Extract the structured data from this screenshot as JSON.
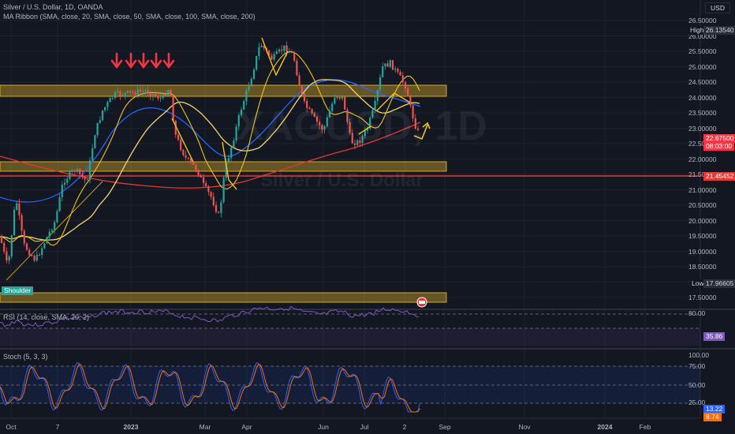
{
  "header": {
    "symbol_line": "Silver / U.S. Dollar, 1D, OANDA",
    "indicator_line": "MA Ribbon (SMA, close, 20, SMA, close, 50, SMA, close, 100, SMA, close, 200)",
    "currency": "USD"
  },
  "watermark": {
    "ticker": "XAGUSD, 1D",
    "name": "Silver / U.S. Dollar"
  },
  "price_axis": {
    "ticks": [
      "26.50000",
      "26.00000",
      "25.50000",
      "25.00000",
      "24.50000",
      "24.00000",
      "23.50000",
      "23.00000",
      "22.50000",
      "22.00000",
      "21.50000",
      "21.00000",
      "20.50000",
      "20.00000",
      "19.50000",
      "19.00000",
      "18.50000",
      "18.00000",
      "17.50000"
    ],
    "high_label": "High",
    "high_value": "26.13540",
    "low_label": "Low",
    "low_value": "17.96605",
    "last_price": "22.67500",
    "countdown": "08:03:00",
    "redline_value": "21.45452"
  },
  "annotations": {
    "shoulder_label": "Shoulder"
  },
  "rsi": {
    "title": "RSI (14, close, SMA, 20, 2)",
    "ticks": [
      "80.00"
    ],
    "value": "35.86"
  },
  "stoch": {
    "title": "Stoch (5, 3, 3)",
    "ticks": [
      "100.00",
      "75.00",
      "50.00",
      "25.00"
    ],
    "k_value": "13.22",
    "d_value": "8.74"
  },
  "time_axis": {
    "ticks": [
      "Oct",
      "7",
      "2023",
      "Mar",
      "Apr",
      "Jun",
      "Jul",
      "2",
      "Sep",
      "Nov",
      "2024",
      "Feb"
    ]
  },
  "colors": {
    "background": "#131722",
    "candle_up": "#26a69a",
    "candle_down": "#ef5350",
    "zone_fill": "#c9a227",
    "ma20": "#f0c419",
    "ma50": "#f5d76e",
    "ma100": "#2962ff",
    "ma200": "#e53935",
    "rsi_line": "#7e57c2",
    "stoch_k": "#2962ff",
    "stoch_d": "#ff6d00"
  }
}
